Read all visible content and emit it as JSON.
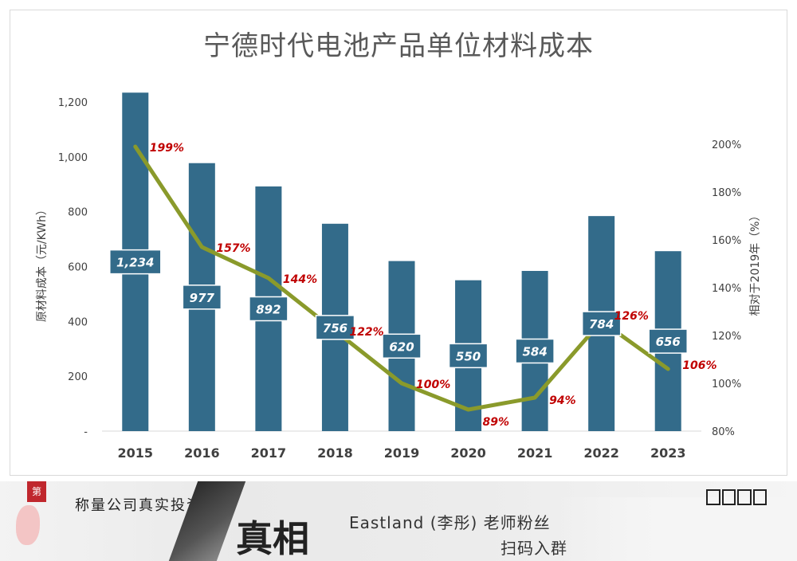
{
  "chart_data": {
    "type": "bar",
    "title": "宁德时代电池产品单位材料成本",
    "categories": [
      "2015",
      "2016",
      "2017",
      "2018",
      "2019",
      "2020",
      "2021",
      "2022",
      "2023"
    ],
    "series": [
      {
        "values": [
          1234,
          977,
          892,
          756,
          620,
          550,
          584,
          784,
          656
        ],
        "value_labels": [
          "1,234",
          "977",
          "892",
          "756",
          "620",
          "550",
          "584",
          "784",
          "656"
        ],
        "axis": "left",
        "kind": "bar"
      },
      {
        "values": [
          199,
          157,
          144,
          122,
          100,
          89,
          94,
          126,
          106
        ],
        "value_labels": [
          "199%",
          "157%",
          "144%",
          "122%",
          "100%",
          "89%",
          "94%",
          "126%",
          "106%"
        ],
        "axis": "right",
        "kind": "line"
      }
    ],
    "ylabel": "原材料成本（元/KWh）",
    "y2label": "相对于2019年（%）",
    "ylim": [
      0,
      1300
    ],
    "y2lim": [
      80,
      200
    ],
    "yticks": [
      "-",
      "200",
      "400",
      "600",
      "800",
      "1,000",
      "1,200"
    ],
    "yticks_values": [
      0,
      200,
      400,
      600,
      800,
      1000,
      1200
    ],
    "y2ticks": [
      "80%",
      "100%",
      "120%",
      "140%",
      "160%",
      "180%",
      "200%"
    ],
    "y2ticks_values": [
      80,
      100,
      120,
      140,
      160,
      180,
      200
    ],
    "colors": {
      "bar": "#336b8a",
      "line": "#8a9a2b",
      "line_label": "#c00000",
      "axis_text": "#404040"
    },
    "grid": false,
    "legend": "none"
  },
  "banner": {
    "badge": "第",
    "tagline": "称量公司真实投资价值",
    "big_text": "真相",
    "name": "Eastland (李彤) 老师粉丝",
    "scan": "扫码入群"
  }
}
